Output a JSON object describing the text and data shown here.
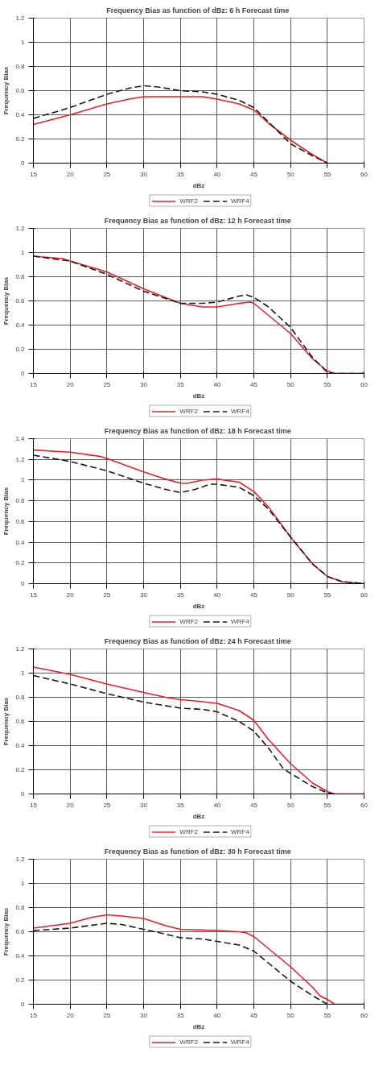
{
  "chart_data": [
    {
      "type": "line",
      "title": "Frequency Bias as function of dBz:  6 h Forecast time",
      "xlabel": "dBz",
      "ylabel": "Frequency Bias",
      "xlim": [
        15,
        60
      ],
      "ylim": [
        0,
        1.2
      ],
      "xticks": [
        15,
        20,
        25,
        30,
        35,
        40,
        45,
        50,
        55,
        60
      ],
      "yticks": [
        0,
        0.2,
        0.4,
        0.6,
        0.8,
        1,
        1.2
      ],
      "grid": true,
      "legend": "bottom",
      "series": [
        {
          "name": "WRF2",
          "color": "#e8202a",
          "line_style": "solid",
          "x": [
            15,
            20,
            25,
            28,
            30,
            35,
            38,
            40,
            43,
            45,
            47,
            50,
            53,
            55
          ],
          "values": [
            0.32,
            0.4,
            0.49,
            0.53,
            0.55,
            0.55,
            0.55,
            0.53,
            0.49,
            0.44,
            0.33,
            0.19,
            0.07,
            0.0
          ]
        },
        {
          "name": "WRF4",
          "color": "#1a1a1a",
          "line_style": "dashed",
          "x": [
            15,
            20,
            25,
            28,
            30,
            32,
            35,
            38,
            40,
            43,
            45,
            47,
            50,
            53,
            55
          ],
          "values": [
            0.37,
            0.46,
            0.57,
            0.62,
            0.64,
            0.63,
            0.6,
            0.59,
            0.57,
            0.52,
            0.46,
            0.34,
            0.16,
            0.06,
            0.0
          ]
        }
      ]
    },
    {
      "type": "line",
      "title": "Frequency Bias as function of dBz:  12 h Forecast time",
      "xlabel": "dBz",
      "ylabel": "Frequency Bias",
      "xlim": [
        15,
        60
      ],
      "ylim": [
        0,
        1.2
      ],
      "xticks": [
        15,
        20,
        25,
        30,
        35,
        40,
        45,
        50,
        55,
        60
      ],
      "yticks": [
        0,
        0.2,
        0.4,
        0.6,
        0.8,
        1,
        1.2
      ],
      "grid": true,
      "legend": "bottom",
      "series": [
        {
          "name": "WRF2",
          "color": "#e8202a",
          "line_style": "solid",
          "x": [
            15,
            19,
            20,
            25,
            30,
            35,
            38,
            40,
            43,
            44.5,
            45,
            47,
            50,
            53,
            55,
            56,
            60
          ],
          "values": [
            0.97,
            0.95,
            0.93,
            0.84,
            0.7,
            0.58,
            0.55,
            0.55,
            0.58,
            0.59,
            0.58,
            0.48,
            0.33,
            0.12,
            0.02,
            0.0,
            0.0
          ]
        },
        {
          "name": "WRF4",
          "color": "#1a1a1a",
          "line_style": "dashed",
          "x": [
            15,
            20,
            25,
            30,
            35,
            38,
            40,
            43,
            44,
            45,
            47,
            50,
            53,
            55,
            56,
            60
          ],
          "values": [
            0.97,
            0.93,
            0.82,
            0.68,
            0.58,
            0.58,
            0.59,
            0.64,
            0.65,
            0.63,
            0.55,
            0.38,
            0.13,
            0.01,
            0.0,
            0.0
          ]
        }
      ]
    },
    {
      "type": "line",
      "title": "Frequency Bias as function of dBz:  18 h Forecast time",
      "xlabel": "dBz",
      "ylabel": "Frequency Bias",
      "xlim": [
        15,
        60
      ],
      "ylim": [
        0,
        1.4
      ],
      "xticks": [
        15,
        20,
        25,
        30,
        35,
        40,
        45,
        50,
        55,
        60
      ],
      "yticks": [
        0,
        0.2,
        0.4,
        0.6,
        0.8,
        1,
        1.2,
        1.4
      ],
      "grid": true,
      "legend": "bottom",
      "series": [
        {
          "name": "WRF2",
          "color": "#e8202a",
          "line_style": "solid",
          "x": [
            15,
            20,
            24,
            25,
            30,
            33,
            35,
            36,
            38,
            40,
            43,
            45,
            47,
            50,
            53,
            55,
            57,
            60
          ],
          "values": [
            1.29,
            1.27,
            1.23,
            1.21,
            1.08,
            1.01,
            0.97,
            0.97,
            1.0,
            1.01,
            0.98,
            0.89,
            0.74,
            0.45,
            0.19,
            0.07,
            0.02,
            0.0
          ]
        },
        {
          "name": "WRF4",
          "color": "#1a1a1a",
          "line_style": "dashed",
          "x": [
            15,
            20,
            25,
            30,
            33,
            35,
            37,
            39,
            40,
            43,
            45,
            47,
            50,
            53,
            55,
            57,
            60
          ],
          "values": [
            1.24,
            1.18,
            1.09,
            0.97,
            0.91,
            0.88,
            0.91,
            0.96,
            0.96,
            0.93,
            0.85,
            0.72,
            0.45,
            0.19,
            0.07,
            0.02,
            0.0
          ]
        }
      ]
    },
    {
      "type": "line",
      "title": "Frequency Bias as function of dBz:  24 h Forecast time",
      "xlabel": "dBz",
      "ylabel": "Frequency Bias",
      "xlim": [
        15,
        60
      ],
      "ylim": [
        0,
        1.2
      ],
      "xticks": [
        15,
        20,
        25,
        30,
        35,
        40,
        45,
        50,
        55,
        60
      ],
      "yticks": [
        0,
        0.2,
        0.4,
        0.6,
        0.8,
        1,
        1.2
      ],
      "grid": true,
      "legend": "bottom",
      "series": [
        {
          "name": "WRF2",
          "color": "#e8202a",
          "line_style": "solid",
          "x": [
            15,
            20,
            25,
            30,
            33,
            35,
            37,
            40,
            43,
            45,
            47,
            50,
            53,
            55,
            56,
            59,
            60
          ],
          "values": [
            1.05,
            0.99,
            0.91,
            0.84,
            0.8,
            0.78,
            0.77,
            0.75,
            0.69,
            0.61,
            0.45,
            0.25,
            0.09,
            0.02,
            0.0,
            0.0,
            0.0
          ]
        },
        {
          "name": "WRF4",
          "color": "#1a1a1a",
          "line_style": "dashed",
          "x": [
            15,
            20,
            25,
            30,
            35,
            38,
            40,
            43,
            45,
            47,
            49,
            50,
            53,
            55,
            56
          ],
          "values": [
            0.98,
            0.91,
            0.83,
            0.76,
            0.71,
            0.7,
            0.68,
            0.6,
            0.52,
            0.38,
            0.21,
            0.17,
            0.06,
            0.01,
            0.0
          ]
        }
      ]
    },
    {
      "type": "line",
      "title": "Frequency Bias as function of dBz:  30 h Forecast time",
      "xlabel": "dBz",
      "ylabel": "Frequency Bias",
      "xlim": [
        15,
        60
      ],
      "ylim": [
        0,
        1.2
      ],
      "xticks": [
        15,
        20,
        25,
        30,
        35,
        40,
        45,
        50,
        55,
        60
      ],
      "yticks": [
        0,
        0.2,
        0.4,
        0.6,
        0.8,
        1,
        1.2
      ],
      "grid": true,
      "legend": "bottom",
      "series": [
        {
          "name": "WRF2",
          "color": "#e8202a",
          "line_style": "solid",
          "x": [
            15,
            20,
            23,
            25,
            27,
            30,
            33,
            35,
            40,
            43,
            44,
            45,
            47,
            50,
            53,
            54,
            55,
            56,
            60
          ],
          "values": [
            0.63,
            0.67,
            0.72,
            0.74,
            0.73,
            0.71,
            0.65,
            0.62,
            0.61,
            0.6,
            0.59,
            0.56,
            0.46,
            0.31,
            0.14,
            0.07,
            0.04,
            0.0,
            0.0
          ]
        },
        {
          "name": "WRF4",
          "color": "#1a1a1a",
          "line_style": "dashed",
          "x": [
            15,
            20,
            25,
            27,
            30,
            33,
            35,
            38,
            40,
            43,
            45,
            47,
            50,
            53,
            55
          ],
          "values": [
            0.61,
            0.63,
            0.67,
            0.66,
            0.62,
            0.58,
            0.55,
            0.54,
            0.52,
            0.49,
            0.44,
            0.34,
            0.19,
            0.07,
            0.0
          ]
        }
      ]
    }
  ]
}
